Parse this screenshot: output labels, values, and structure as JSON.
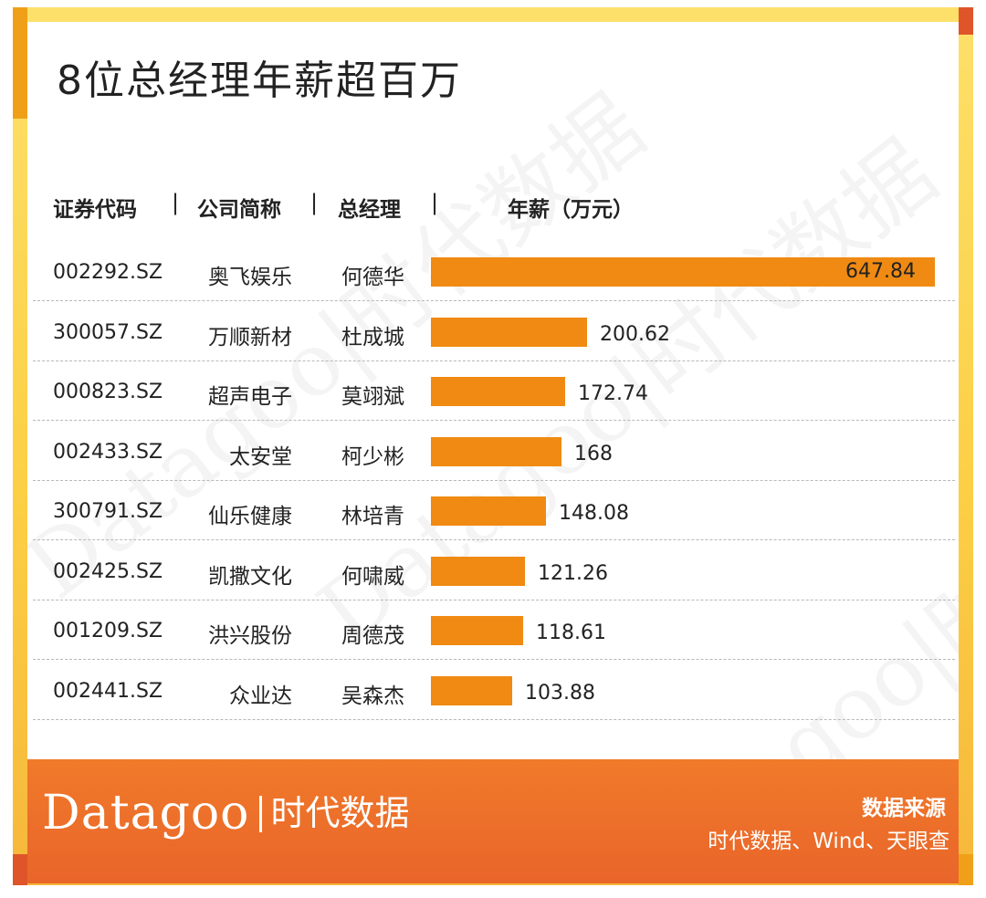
{
  "title": "8位总经理年薪超百万",
  "headers": {
    "code": "证券代码",
    "company": "公司简称",
    "manager": "总经理",
    "salary": "年薪（万元）",
    "sep": "|"
  },
  "chart_data": {
    "type": "bar",
    "orientation": "horizontal",
    "title": "8位总经理年薪超百万",
    "unit": "万元",
    "columns": [
      "证券代码",
      "公司简称",
      "总经理",
      "年薪（万元）"
    ],
    "rows": [
      {
        "code": "002292.SZ",
        "company": "奥飞娱乐",
        "manager": "何德华",
        "salary": 647.84,
        "salary_label": "647.84"
      },
      {
        "code": "300057.SZ",
        "company": "万顺新材",
        "manager": "杜成城",
        "salary": 200.62,
        "salary_label": "200.62"
      },
      {
        "code": "000823.SZ",
        "company": "超声电子",
        "manager": "莫翊斌",
        "salary": 172.74,
        "salary_label": "172.74"
      },
      {
        "code": "002433.SZ",
        "company": "太安堂",
        "manager": "柯少彬",
        "salary": 168,
        "salary_label": "168"
      },
      {
        "code": "300791.SZ",
        "company": "仙乐健康",
        "manager": "林培青",
        "salary": 148.08,
        "salary_label": "148.08"
      },
      {
        "code": "002425.SZ",
        "company": "凯撒文化",
        "manager": "何啸威",
        "salary": 121.26,
        "salary_label": "121.26"
      },
      {
        "code": "001209.SZ",
        "company": "洪兴股份",
        "manager": "周德茂",
        "salary": 118.61,
        "salary_label": "118.61"
      },
      {
        "code": "002441.SZ",
        "company": "众业达",
        "manager": "吴森杰",
        "salary": 103.88,
        "salary_label": "103.88"
      }
    ],
    "bar_color": "#f08a12"
  },
  "footer": {
    "logo_word": "Datagoo",
    "logo_cn": "时代数据",
    "source_title": "数据来源",
    "source_body": "时代数据、Wind、天眼查"
  },
  "watermark": {
    "text": "Datagoo|时代数据"
  },
  "colors": {
    "frame": "#fccf45",
    "footer": "#ec6d2a",
    "bar": "#f08a12"
  }
}
